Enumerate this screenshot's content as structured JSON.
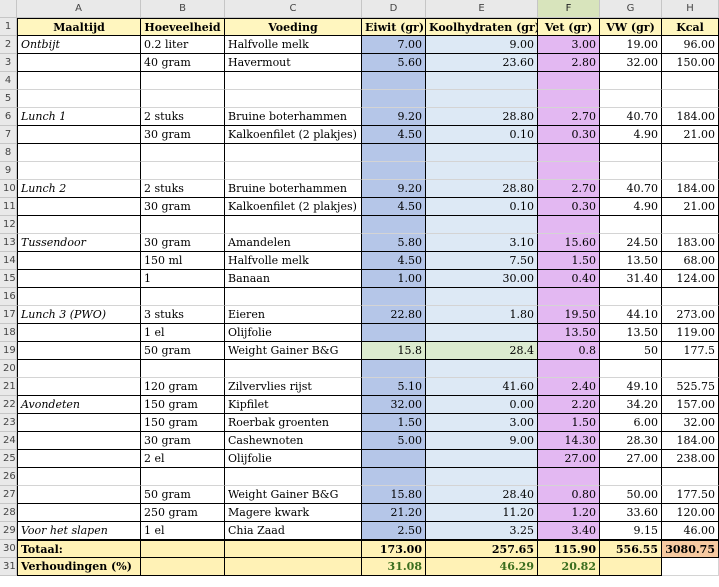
{
  "columns": [
    "A",
    "B",
    "C",
    "D",
    "E",
    "F",
    "G",
    "H"
  ],
  "selected_column": "F",
  "header": {
    "A": "Maaltijd",
    "B": "Hoeveelheid",
    "C": "Voeding",
    "D": "Eiwit (gr)",
    "E": "Koolhydraten  (gr)",
    "F": "Vet  (gr)",
    "G": "VW  (gr)",
    "H": "Kcal"
  },
  "rows": [
    {
      "n": "2",
      "A": "Ontbijt",
      "B": "0.2 liter",
      "C": "Halfvolle melk",
      "D": "7.00",
      "E": "9.00",
      "F": "3.00",
      "G": "19.00",
      "H": "96.00"
    },
    {
      "n": "3",
      "A": "",
      "B": "40 gram",
      "C": "Havermout",
      "D": "5.60",
      "E": "23.60",
      "F": "2.80",
      "G": "32.00",
      "H": "150.00"
    },
    {
      "n": "4"
    },
    {
      "n": "5"
    },
    {
      "n": "6",
      "A": "Lunch 1",
      "B": "2 stuks",
      "C": "Bruine boterhammen",
      "D": "9.20",
      "E": "28.80",
      "F": "2.70",
      "G": "40.70",
      "H": "184.00"
    },
    {
      "n": "7",
      "A": "",
      "B": "30 gram",
      "C": "Kalkoenfilet (2 plakjes)",
      "D": "4.50",
      "E": "0.10",
      "F": "0.30",
      "G": "4.90",
      "H": "21.00"
    },
    {
      "n": "8"
    },
    {
      "n": "9"
    },
    {
      "n": "10",
      "A": "Lunch 2",
      "B": "2 stuks",
      "C": "Bruine boterhammen",
      "D": "9.20",
      "E": "28.80",
      "F": "2.70",
      "G": "40.70",
      "H": "184.00"
    },
    {
      "n": "11",
      "A": "",
      "B": "30 gram",
      "C": "Kalkoenfilet (2 plakjes)",
      "D": "4.50",
      "E": "0.10",
      "F": "0.30",
      "G": "4.90",
      "H": "21.00"
    },
    {
      "n": "12"
    },
    {
      "n": "13",
      "A": "Tussendoor",
      "B": "30 gram",
      "C": "Amandelen",
      "D": "5.80",
      "E": "3.10",
      "F": "15.60",
      "G": "24.50",
      "H": "183.00"
    },
    {
      "n": "14",
      "A": "",
      "B": "150 ml",
      "C": "Halfvolle melk",
      "D": "4.50",
      "E": "7.50",
      "F": "1.50",
      "G": "13.50",
      "H": "68.00"
    },
    {
      "n": "15",
      "A": "",
      "B": "1",
      "C": "Banaan",
      "D": "1.00",
      "E": "30.00",
      "F": "0.40",
      "G": "31.40",
      "H": "124.00"
    },
    {
      "n": "16"
    },
    {
      "n": "17",
      "A": "Lunch 3 (PWO)",
      "B": "3 stuks",
      "C": "Eieren",
      "D": "22.80",
      "E": "1.80",
      "F": "19.50",
      "G": "44.10",
      "H": "273.00"
    },
    {
      "n": "18",
      "A": "",
      "B": "1 el",
      "C": "Olijfolie",
      "D": "",
      "E": "",
      "F": "13.50",
      "G": "13.50",
      "H": "119.00"
    },
    {
      "n": "19",
      "A": "",
      "B": "50 gram",
      "C": "Weight Gainer B&G",
      "D": "15.8",
      "E": "28.4",
      "F": "0.8",
      "G": "50",
      "H": "177.5"
    },
    {
      "n": "20"
    },
    {
      "n": "21",
      "A": "",
      "B": "120 gram",
      "C": "Zilvervlies rijst",
      "D": "5.10",
      "E": "41.60",
      "F": "2.40",
      "G": "49.10",
      "H": "525.75"
    },
    {
      "n": "22",
      "A": "Avondeten",
      "B": "150 gram",
      "C": "Kipfilet",
      "D": "32.00",
      "E": "0.00",
      "F": "2.20",
      "G": "34.20",
      "H": "157.00"
    },
    {
      "n": "23",
      "A": "",
      "B": "150 gram",
      "C": "Roerbak groenten",
      "D": "1.50",
      "E": "3.00",
      "F": "1.50",
      "G": "6.00",
      "H": "32.00"
    },
    {
      "n": "24",
      "A": "",
      "B": "30 gram",
      "C": "Cashewnoten",
      "D": "5.00",
      "E": "9.00",
      "F": "14.30",
      "G": "28.30",
      "H": "184.00"
    },
    {
      "n": "25",
      "A": "",
      "B": "2 el",
      "C": "Olijfolie",
      "D": "",
      "E": "",
      "F": "27.00",
      "G": "27.00",
      "H": "238.00"
    },
    {
      "n": "26"
    },
    {
      "n": "27",
      "A": "",
      "B": "50 gram",
      "C": "Weight Gainer B&G",
      "D": "15.80",
      "E": "28.40",
      "F": "0.80",
      "G": "50.00",
      "H": "177.50"
    },
    {
      "n": "28",
      "A": "",
      "B": "250 gram",
      "C": "Magere kwark",
      "D": "21.20",
      "E": "11.20",
      "F": "1.20",
      "G": "33.60",
      "H": "120.00"
    },
    {
      "n": "29",
      "A": "Voor het slapen",
      "B": "1 el",
      "C": "Chia Zaad",
      "D": "2.50",
      "E": "3.25",
      "F": "3.40",
      "G": "9.15",
      "H": "46.00"
    }
  ],
  "totals": {
    "n": "30",
    "A": "Totaal:",
    "D": "173.00",
    "E": "257.65",
    "F": "115.90",
    "G": "556.55",
    "H": "3080.75"
  },
  "ratios": {
    "n": "31",
    "A": "Verhoudingen (%)",
    "D": "31.08",
    "E": "46.29",
    "F": "20.82"
  },
  "colors": {
    "protein": "#b5c6e8",
    "carbs": "#dde9f5",
    "fat": "#e3b8f2",
    "totals": "#fff2b6",
    "kcal_total": "#f6c9a1",
    "selected_header": "#d8e4bc"
  }
}
